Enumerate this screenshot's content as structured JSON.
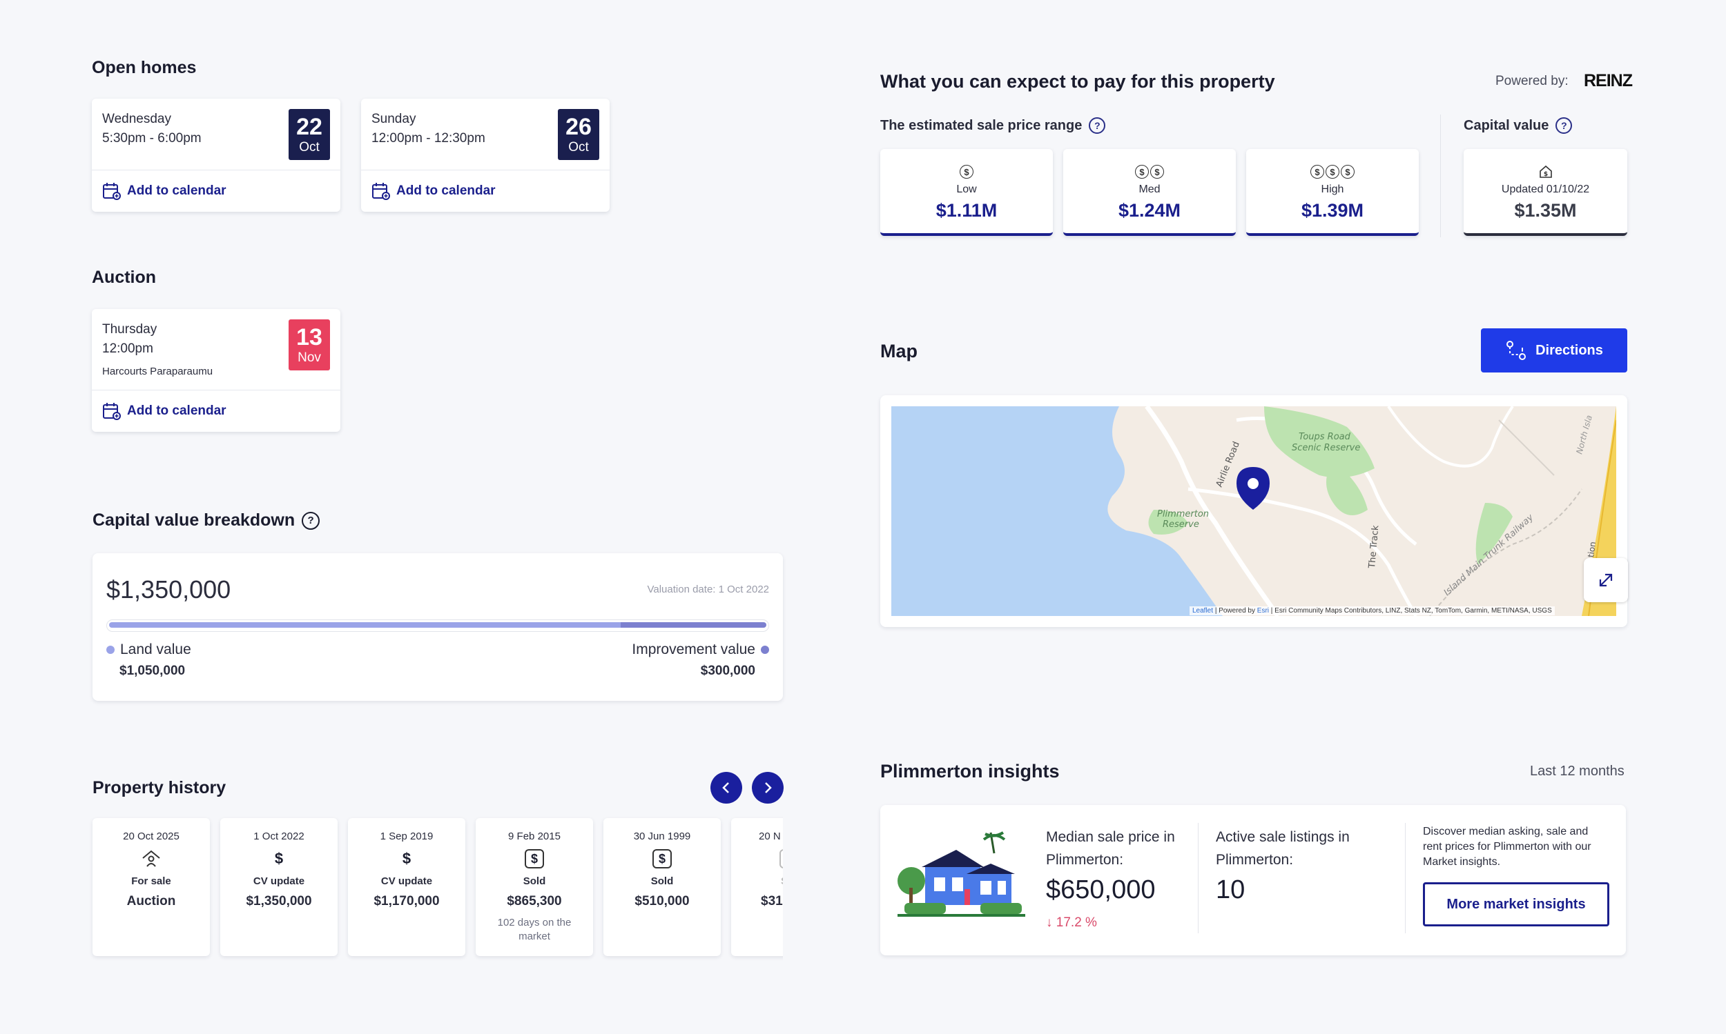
{
  "open_homes": {
    "title": "Open homes",
    "events": [
      {
        "day": "Wednesday",
        "time": "5:30pm - 6:00pm",
        "date_num": "22",
        "date_month": "Oct",
        "calendar_label": "Add to calendar"
      },
      {
        "day": "Sunday",
        "time": "12:00pm - 12:30pm",
        "date_num": "26",
        "date_month": "Oct",
        "calendar_label": "Add to calendar"
      }
    ]
  },
  "auction": {
    "title": "Auction",
    "day": "Thursday",
    "time": "12:00pm",
    "venue": "Harcourts Paraparaumu",
    "date_num": "13",
    "date_month": "Nov",
    "calendar_label": "Add to calendar"
  },
  "capital_value_breakdown": {
    "title": "Capital value breakdown",
    "help": "?",
    "total": "$1,350,000",
    "valuation_date": "Valuation date: 1 Oct 2022",
    "land_label": "Land value",
    "land_value": "$1,050,000",
    "land_fraction": 0.778,
    "improvement_label": "Improvement value",
    "improvement_value": "$300,000",
    "colors": {
      "land": "#9aa3e8",
      "improvement": "#7c80cf"
    }
  },
  "property_history": {
    "title": "Property history",
    "items": [
      {
        "date": "20 Oct 2025",
        "icon": "house-sale-icon",
        "type": "For sale",
        "value": "Auction",
        "sub": ""
      },
      {
        "date": "1 Oct 2022",
        "icon": "dollar-icon",
        "type": "CV update",
        "value": "$1,350,000",
        "sub": ""
      },
      {
        "date": "1 Sep 2019",
        "icon": "dollar-icon",
        "type": "CV update",
        "value": "$1,170,000",
        "sub": ""
      },
      {
        "date": "9 Feb 2015",
        "icon": "dollar-box-icon",
        "type": "Sold",
        "value": "$865,300",
        "sub": "102 days on the market"
      },
      {
        "date": "30 Jun 1999",
        "icon": "dollar-box-icon",
        "type": "Sold",
        "value": "$510,000",
        "sub": ""
      },
      {
        "date": "20 N",
        "icon": "dollar-box-icon",
        "type": "S",
        "value": "$31",
        "sub": ""
      }
    ]
  },
  "price_estimate": {
    "title": "What you can expect to pay for this property",
    "powered_by": "Powered by:",
    "brand": "REINZ",
    "range_label": "The estimated sale price range",
    "help": "?",
    "low": {
      "label": "Low",
      "value": "$1.11M"
    },
    "med": {
      "label": "Med",
      "value": "$1.24M"
    },
    "high": {
      "label": "High",
      "value": "$1.39M"
    },
    "capital_label": "Capital value",
    "capital": {
      "label": "Updated 01/10/22",
      "value": "$1.35M"
    }
  },
  "map": {
    "title": "Map",
    "directions_label": "Directions",
    "labels": {
      "airlie": "Airlie Road",
      "toups": "Toups Road",
      "toups2": "Scenic Reserve",
      "plim": "Plimmerton",
      "plim2": "Reserve",
      "track": "The Track",
      "nimt": "Island Main Trunk Railway",
      "north": "North Isla",
      "station": "th Station"
    },
    "attribution": {
      "leaflet": "Leaflet",
      "powered": "| Powered by",
      "esri": "Esri",
      "rest": "| Esri Community Maps Contributors, LINZ, Stats NZ, TomTom, Garmin, METI/NASA, USGS"
    }
  },
  "insights": {
    "title": "Plimmerton insights",
    "period": "Last 12 months",
    "median_label": "Median sale price in Plimmerton:",
    "median_value": "$650,000",
    "median_change": "↓ 17.2 %",
    "listings_label": "Active sale listings in Plimmerton:",
    "listings_value": "10",
    "discover_text": "Discover median asking, sale and rent prices for Plimmerton with our Market insights.",
    "button_label": "More market insights"
  }
}
